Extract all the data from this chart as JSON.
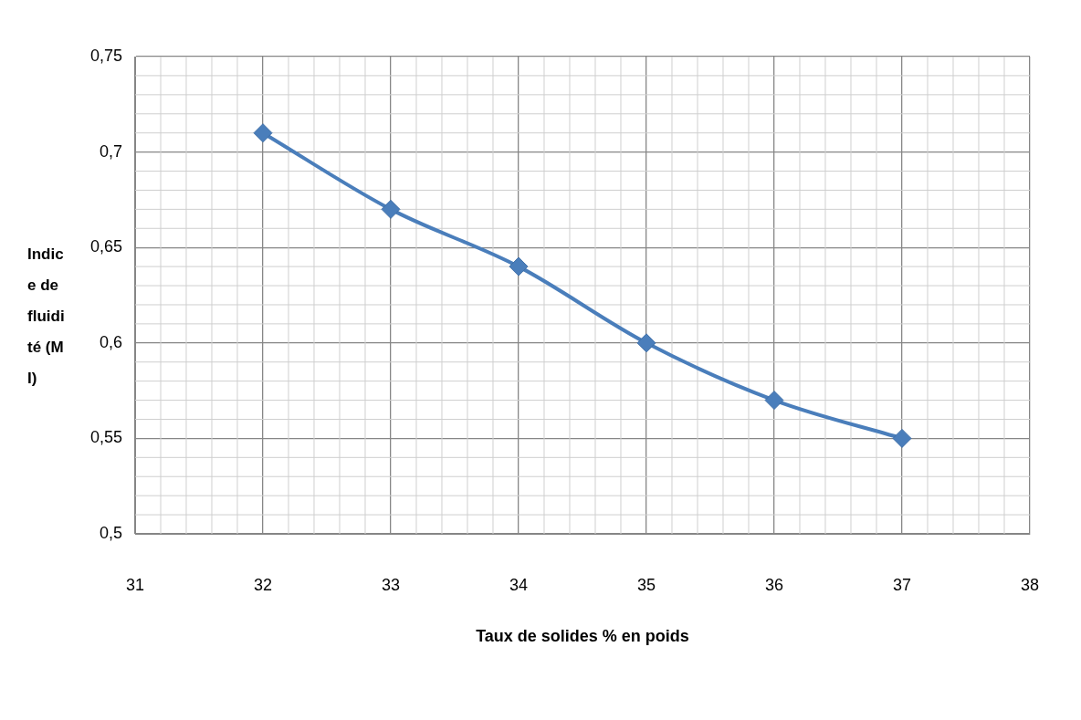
{
  "chart_data": {
    "type": "line",
    "xlabel": "Taux de solides % en poids",
    "ylabel": "Indice de fluidité (MI)",
    "x": [
      32,
      33,
      34,
      35,
      36,
      37
    ],
    "series": [
      {
        "color": "#4a7ebb",
        "values": [
          0.71,
          0.67,
          0.64,
          0.6,
          0.57,
          0.55
        ]
      }
    ],
    "xlim": [
      31,
      38
    ],
    "xticks": [
      31,
      32,
      33,
      34,
      35,
      36,
      37,
      38
    ],
    "ylim": [
      0.5,
      0.75
    ],
    "yticks": [
      {
        "value": 0.5,
        "label": "0,5"
      },
      {
        "value": 0.55,
        "label": "0,55"
      },
      {
        "value": 0.6,
        "label": "0,6"
      },
      {
        "value": 0.65,
        "label": "0,65"
      },
      {
        "value": 0.7,
        "label": "0,7"
      },
      {
        "value": 0.75,
        "label": "0,75"
      }
    ],
    "grid": true,
    "marker": "diamond",
    "line_style": "solid",
    "legend": false
  }
}
